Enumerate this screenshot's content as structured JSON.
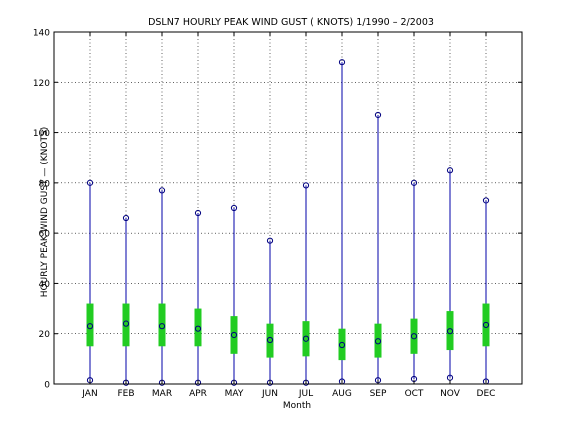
{
  "chart_data": {
    "type": "box",
    "title": "DSLN7  HOURLY PEAK WIND GUST ( KNOTS) 1/1990 – 2/2003",
    "xlabel": "Month",
    "ylabel": "HOURLY PEAK WIND GUST — (KNOTS)",
    "ylim": [
      0,
      140
    ],
    "yticks": [
      0,
      20,
      40,
      60,
      80,
      100,
      120,
      140
    ],
    "grid": true,
    "categories": [
      "JAN",
      "FEB",
      "MAR",
      "APR",
      "MAY",
      "JUN",
      "JUL",
      "AUG",
      "SEP",
      "OCT",
      "NOV",
      "DEC"
    ],
    "max": [
      80,
      66,
      77,
      68,
      70,
      57,
      79,
      128,
      107,
      80,
      85,
      73
    ],
    "q3": [
      32,
      32,
      32,
      30,
      27,
      24,
      25,
      22,
      24,
      26,
      29,
      32
    ],
    "median": [
      23,
      24,
      23,
      22,
      19.5,
      17.5,
      18,
      15.5,
      17,
      19,
      21,
      23.5
    ],
    "q1": [
      15,
      15,
      15,
      15,
      12,
      10.5,
      11,
      9.5,
      10.5,
      12,
      13.5,
      15
    ],
    "min": [
      1.5,
      0.5,
      0.5,
      0.5,
      0.5,
      0.5,
      0.5,
      1,
      1.5,
      2,
      2.5,
      1
    ],
    "colors": {
      "whisker": "#0000aa",
      "box": "#22cc22",
      "marker": "#00007f"
    }
  }
}
